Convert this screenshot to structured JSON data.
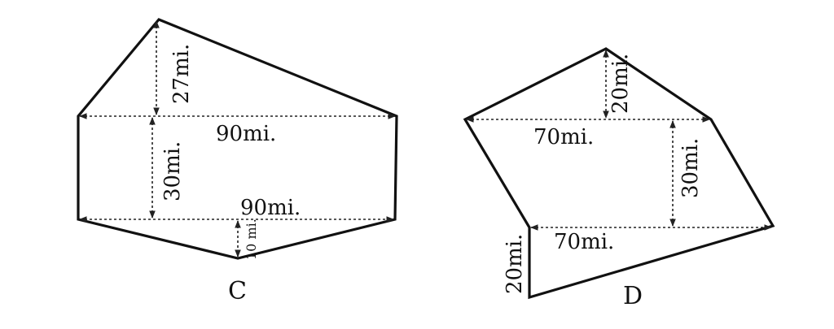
{
  "figures": [
    {
      "letter": "C",
      "labels": {
        "top_height": "27mi.",
        "top_width": "90mi.",
        "middle_height": "30mi.",
        "bottom_width": "90mi.",
        "bottom_height": "10 mi."
      },
      "colors": {
        "lines": "#111111"
      }
    },
    {
      "letter": "D",
      "labels": {
        "top_height": "20mi.",
        "top_width": "70mi.",
        "middle_height": "30mi.",
        "bottom_width": "70mi.",
        "left_height": "20mi."
      },
      "colors": {
        "lines": "#111111"
      }
    }
  ]
}
